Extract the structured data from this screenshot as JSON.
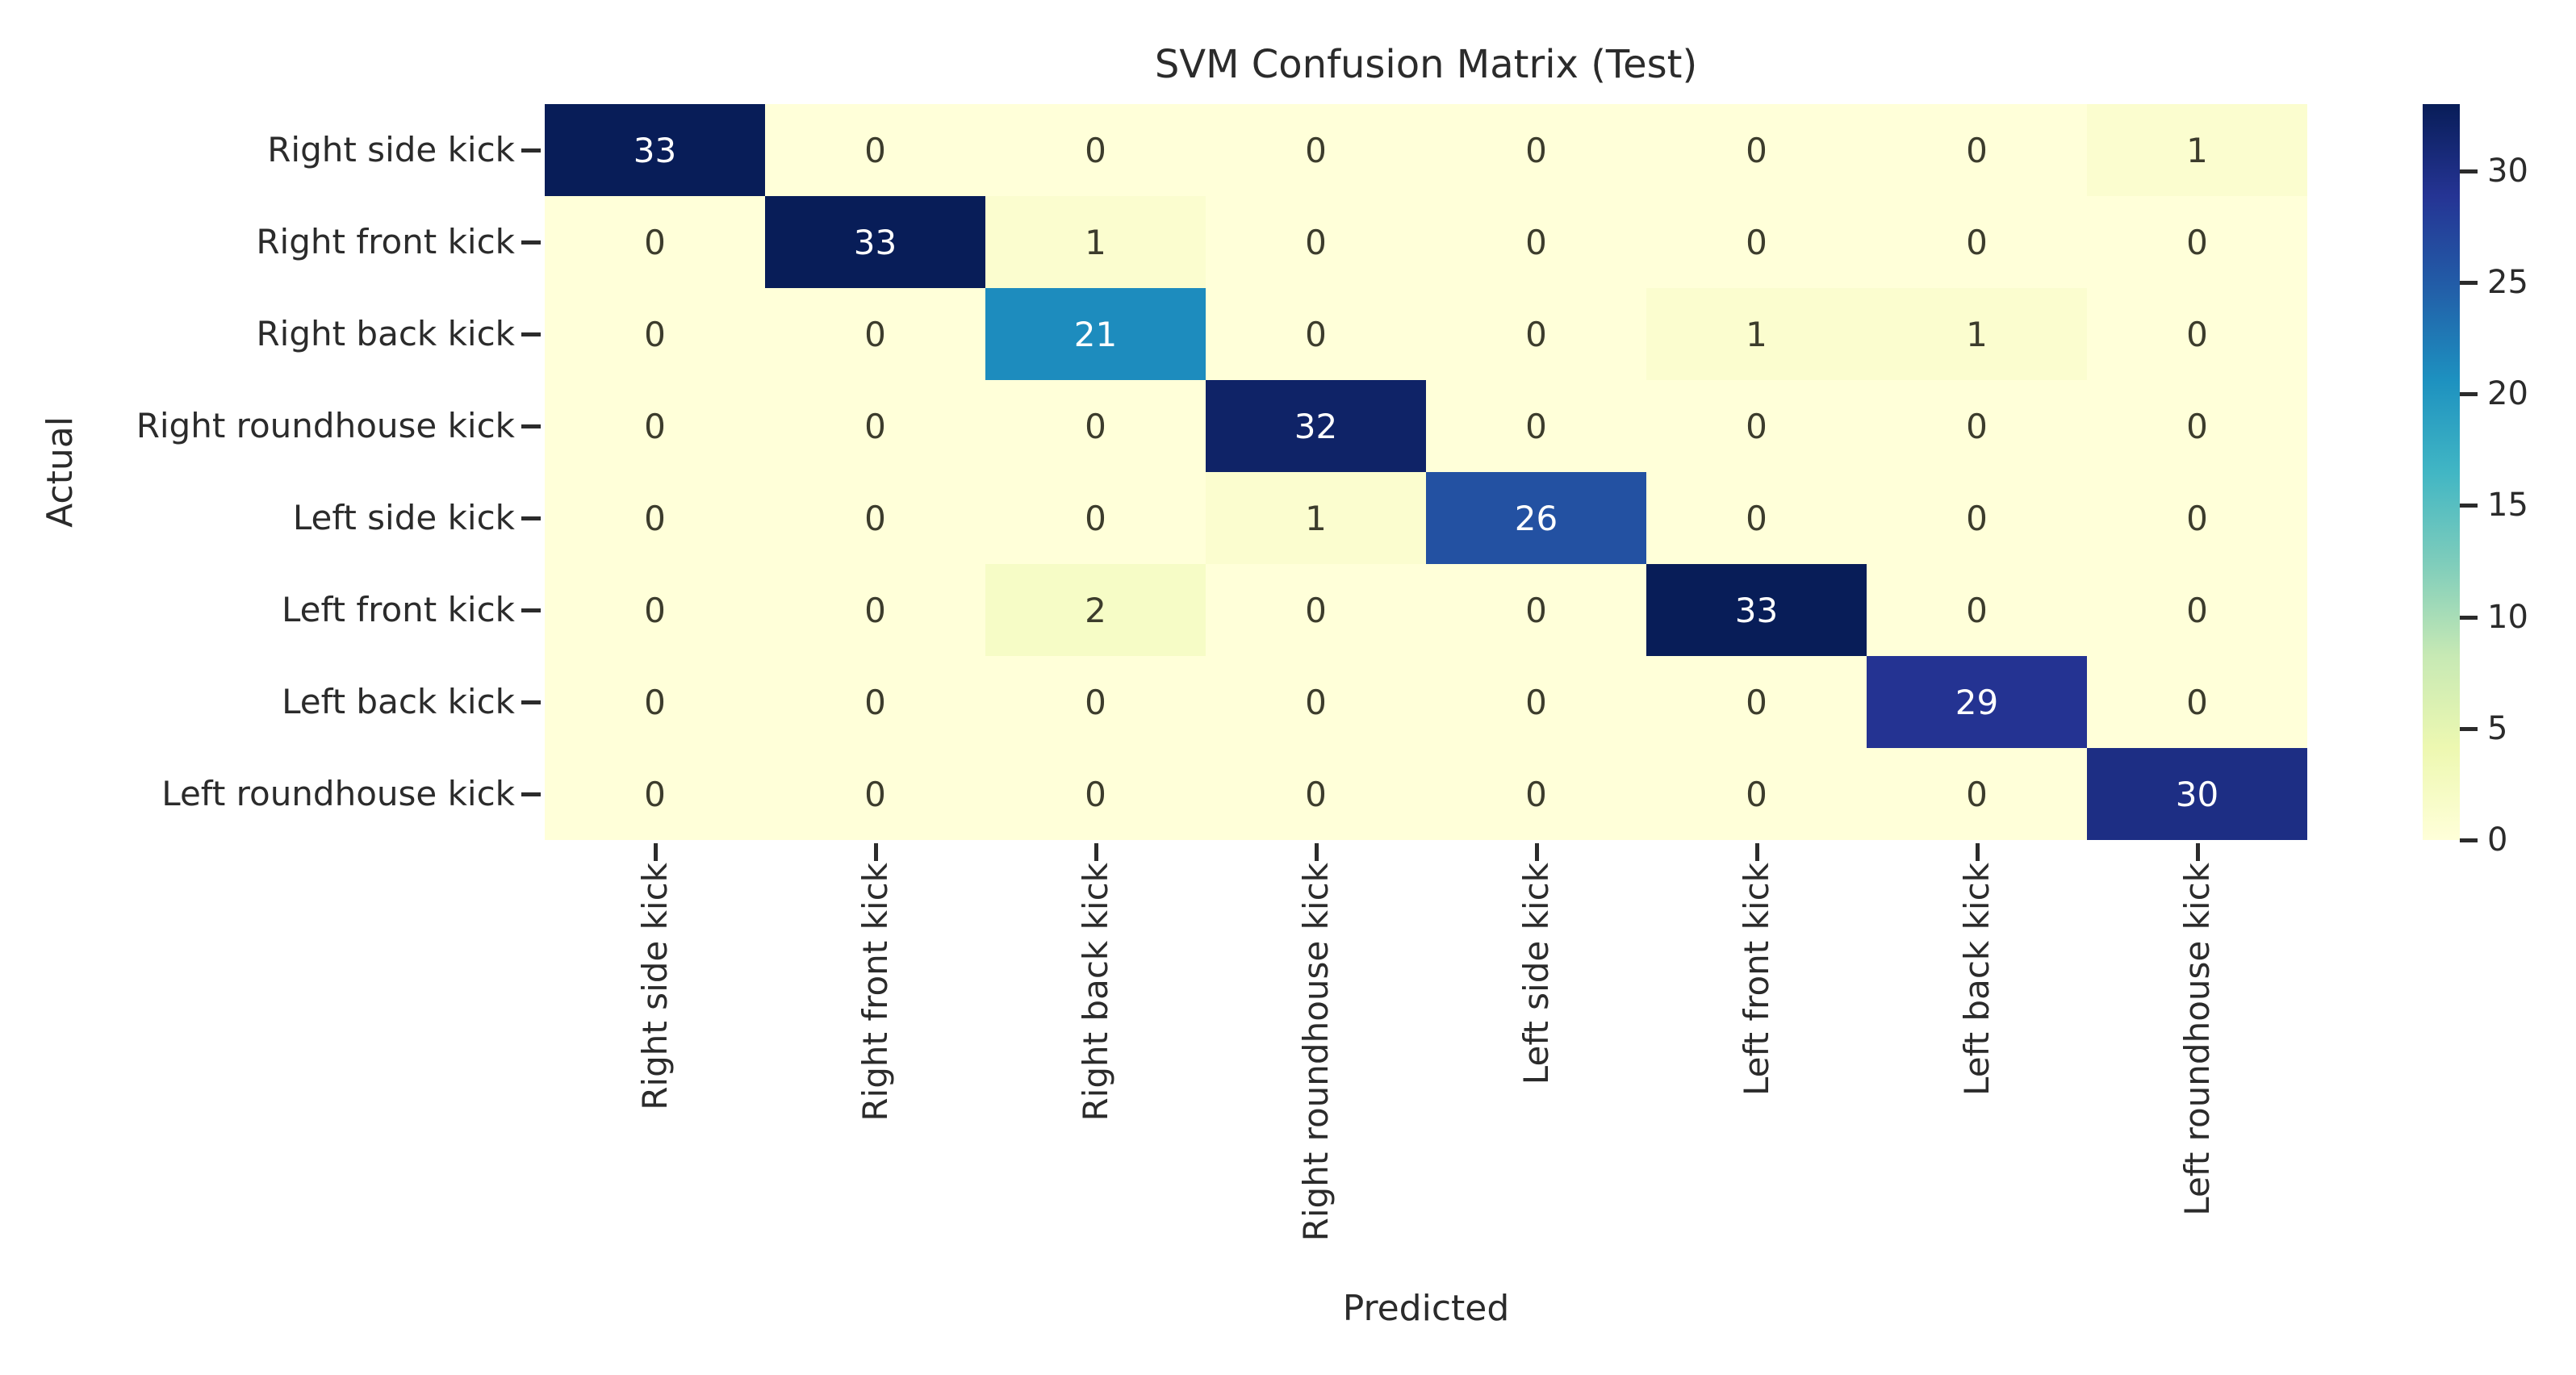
{
  "chart_data": {
    "type": "heatmap",
    "title": "SVM Confusion Matrix (Test)",
    "xlabel": "Predicted",
    "ylabel": "Actual",
    "x_categories": [
      "Right side kick",
      "Right front kick",
      "Right back kick",
      "Right roundhouse kick",
      "Left side kick",
      "Left front kick",
      "Left back kick",
      "Left roundhouse kick"
    ],
    "y_categories": [
      "Right side kick",
      "Right front kick",
      "Right back kick",
      "Right roundhouse kick",
      "Left side kick",
      "Left front kick",
      "Left back kick",
      "Left roundhouse kick"
    ],
    "matrix": [
      [
        33,
        0,
        0,
        0,
        0,
        0,
        0,
        1
      ],
      [
        0,
        33,
        1,
        0,
        0,
        0,
        0,
        0
      ],
      [
        0,
        0,
        21,
        0,
        0,
        1,
        1,
        0
      ],
      [
        0,
        0,
        0,
        32,
        0,
        0,
        0,
        0
      ],
      [
        0,
        0,
        0,
        1,
        26,
        0,
        0,
        0
      ],
      [
        0,
        0,
        2,
        0,
        0,
        33,
        0,
        0
      ],
      [
        0,
        0,
        0,
        0,
        0,
        0,
        29,
        0
      ],
      [
        0,
        0,
        0,
        0,
        0,
        0,
        0,
        30
      ]
    ],
    "vmin": 0,
    "vmax": 33,
    "colorbar_ticks": [
      0,
      5,
      10,
      15,
      20,
      25,
      30
    ],
    "colormap": {
      "name": "YlGnBu",
      "stops": [
        {
          "pos": 0.0,
          "color": "#ffffd9"
        },
        {
          "pos": 0.125,
          "color": "#edf8b1"
        },
        {
          "pos": 0.25,
          "color": "#c7e9b4"
        },
        {
          "pos": 0.375,
          "color": "#7fcdbb"
        },
        {
          "pos": 0.5,
          "color": "#41b6c4"
        },
        {
          "pos": 0.625,
          "color": "#1d91c0"
        },
        {
          "pos": 0.75,
          "color": "#225ea8"
        },
        {
          "pos": 0.875,
          "color": "#253494"
        },
        {
          "pos": 1.0,
          "color": "#081d58"
        }
      ]
    },
    "annotation_colors": {
      "on_dark": "#ffffff",
      "on_light": "#3c3c2c"
    },
    "legend_position": "right-colorbar",
    "grid": false
  }
}
